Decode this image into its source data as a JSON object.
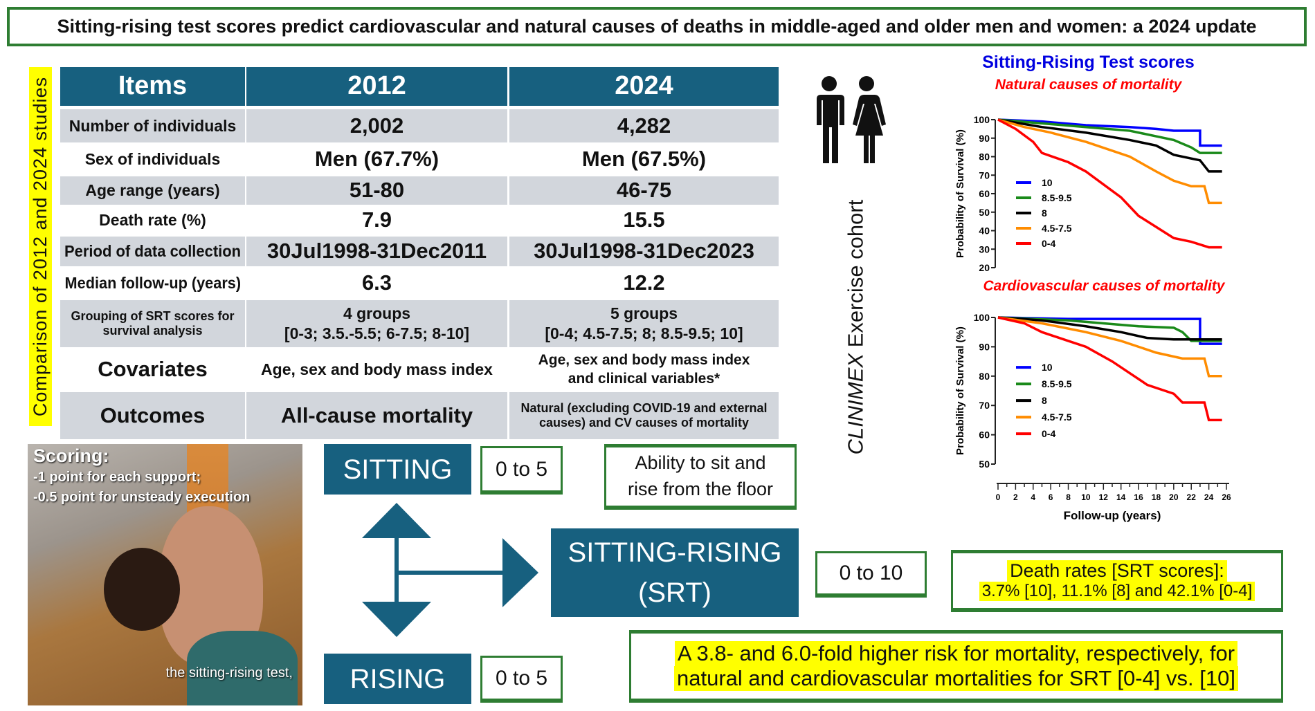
{
  "title": "Sitting-rising test scores predict cardiovascular and natural causes of deaths in middle-aged and older men and women: a 2024 update",
  "side_label": "Comparison of 2012 and 2024 studies",
  "table": {
    "headers": [
      "Items",
      "2012",
      "2024"
    ],
    "rows": [
      {
        "item": "Number of individuals",
        "v2012": "2,002",
        "v2024": "4,282"
      },
      {
        "item": "Sex of individuals",
        "v2012": "Men (67.7%)",
        "v2024": "Men (67.5%)"
      },
      {
        "item": "Age range (years)",
        "v2012": "51-80",
        "v2024": "46-75"
      },
      {
        "item": "Death rate (%)",
        "v2012": "7.9",
        "v2024": "15.5"
      },
      {
        "item": "Period of data collection",
        "v2012": "30Jul1998-31Dec2011",
        "v2024": "30Jul1998-31Dec2023"
      },
      {
        "item": "Median follow-up (years)",
        "v2012": "6.3",
        "v2024": "12.2"
      },
      {
        "item": "Grouping of SRT scores for survival analysis",
        "v2012": "4 groups",
        "v2012b": "[0-3; 3.5.-5.5; 6-7.5; 8-10]",
        "v2024": "5 groups",
        "v2024b": "[0-4; 4.5-7.5; 8; 8.5-9.5; 10]"
      },
      {
        "item": "Covariates",
        "v2012": "Age, sex and body mass index",
        "v2024": "Age, sex and body mass index",
        "v2024b": "and clinical variables*"
      },
      {
        "item": "Outcomes",
        "v2012": "All-cause mortality",
        "v2024": "Natural (excluding COVID-19 and external causes) and CV causes of mortality"
      }
    ]
  },
  "cohort_label": "CLINIMEX Exercise cohort",
  "cohort_italic": "CLINIMEX",
  "cohort_rest": " Exercise cohort",
  "people_icon": "man-woman-icon",
  "charts_header": "Sitting-Rising Test scores",
  "colors": {
    "header_blue": "#17607f",
    "green_border": "#2e7d32",
    "highlight": "#ffff00",
    "title_blue": "#0000e0",
    "subtitle_red": "#ff0000"
  },
  "chart_data": [
    {
      "type": "line",
      "title": "Natural causes of mortality",
      "ylabel": "Probability of Survival (%)",
      "xlabel": "",
      "ylim": [
        20,
        100
      ],
      "yticks": [
        20,
        30,
        40,
        50,
        60,
        70,
        80,
        90,
        100
      ],
      "xlim": [
        0,
        26
      ],
      "legend": "inside-left",
      "series": [
        {
          "name": "10",
          "color": "#0000ff",
          "x": [
            0,
            5,
            10,
            15,
            18,
            20,
            23,
            23,
            25.5
          ],
          "y": [
            100,
            99,
            97,
            96,
            95,
            94,
            94,
            86,
            86
          ]
        },
        {
          "name": "8.5-9.5",
          "color": "#1a8a1a",
          "x": [
            0,
            5,
            10,
            15,
            18,
            20,
            22,
            23,
            25.5
          ],
          "y": [
            100,
            98,
            96,
            94,
            91,
            89,
            85,
            82,
            82
          ]
        },
        {
          "name": "8",
          "color": "#000000",
          "x": [
            0,
            5,
            10,
            15,
            18,
            20,
            22,
            23,
            24,
            25.5
          ],
          "y": [
            100,
            96,
            93,
            89,
            86,
            81,
            79,
            78,
            72,
            72
          ]
        },
        {
          "name": "4.5-7.5",
          "color": "#ff8c00",
          "x": [
            0,
            3,
            6,
            10,
            15,
            18,
            20,
            22,
            23.5,
            24,
            25.5
          ],
          "y": [
            100,
            96,
            93,
            88,
            80,
            72,
            67,
            64,
            64,
            55,
            55
          ]
        },
        {
          "name": "0-4",
          "color": "#ff0000",
          "x": [
            0,
            2,
            4,
            5,
            8,
            10,
            14,
            16,
            18,
            20,
            22,
            24,
            25.5
          ],
          "y": [
            100,
            95,
            88,
            82,
            77,
            72,
            58,
            48,
            42,
            36,
            34,
            31,
            31
          ]
        }
      ]
    },
    {
      "type": "line",
      "title": "Cardiovascular causes of mortality",
      "ylabel": "Probability of Survival (%)",
      "xlabel": "Follow-up (years)",
      "ylim": [
        50,
        100
      ],
      "yticks": [
        50,
        60,
        70,
        80,
        90,
        100
      ],
      "xlim": [
        0,
        26
      ],
      "xticks": [
        0,
        2,
        4,
        6,
        8,
        10,
        12,
        14,
        16,
        18,
        20,
        22,
        24,
        26
      ],
      "legend": "inside-left",
      "series": [
        {
          "name": "10",
          "color": "#0000ff",
          "x": [
            0,
            8,
            23,
            23,
            25.5
          ],
          "y": [
            100,
            99.5,
            99.5,
            91,
            91
          ]
        },
        {
          "name": "8.5-9.5",
          "color": "#1a8a1a",
          "x": [
            0,
            8,
            12,
            16,
            20,
            21,
            22,
            25.5
          ],
          "y": [
            100,
            99,
            98,
            97,
            96.5,
            95,
            92,
            92
          ]
        },
        {
          "name": "8",
          "color": "#000000",
          "x": [
            0,
            5,
            10,
            14,
            17,
            20,
            25.5
          ],
          "y": [
            100,
            99,
            97,
            95,
            93,
            92.5,
            92.5
          ]
        },
        {
          "name": "4.5-7.5",
          "color": "#ff8c00",
          "x": [
            0,
            5,
            10,
            14,
            16,
            18,
            21,
            23.5,
            24,
            25.5
          ],
          "y": [
            100,
            98,
            95,
            92,
            90,
            88,
            86,
            86,
            80,
            80
          ]
        },
        {
          "name": "0-4",
          "color": "#ff0000",
          "x": [
            0,
            3,
            5,
            8,
            10,
            13,
            15,
            17,
            20,
            21,
            23.5,
            24,
            25.5
          ],
          "y": [
            100,
            98,
            95,
            92,
            90,
            85,
            81,
            77,
            74,
            71,
            71,
            65,
            65
          ]
        }
      ]
    }
  ],
  "photo": {
    "scoring_title": "Scoring:",
    "line1": "-1 point for each support;",
    "line2": "-0.5 point for unsteady execution",
    "caption": "the sitting-rising test,"
  },
  "diagram": {
    "sitting": "SITTING",
    "sitting_range": "0 to 5",
    "rising": "RISING",
    "rising_range": "0 to 5",
    "ability1": "Ability to sit and",
    "ability2": "rise from the floor",
    "srt1": "SITTING-RISING",
    "srt2": "(SRT)",
    "srt_range": "0 to 10",
    "death1": "Death rates [SRT scores]:",
    "death2": "3.7% [10], 11.1% [8] and 42.1% [0-4]",
    "risk1": "A 3.8- and 6.0-fold higher risk for mortality, respectively, for",
    "risk2": "natural and cardiovascular mortalities for SRT [0-4] vs. [10]"
  }
}
